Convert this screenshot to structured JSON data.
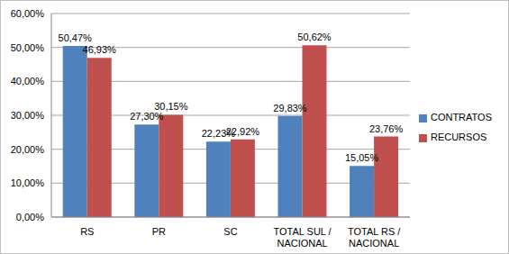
{
  "chart_data": {
    "type": "bar",
    "categories": [
      "RS",
      "PR",
      "SC",
      "TOTAL SUL / NACIONAL",
      "TOTAL RS / NACIONAL"
    ],
    "series": [
      {
        "name": "CONTRATOS",
        "color": "#4f81bd",
        "values": [
          50.47,
          27.3,
          22.23,
          29.83,
          15.05
        ],
        "value_labels": [
          "50,47%",
          "27,30%",
          "22,23%",
          "29,83%",
          "15,05%"
        ]
      },
      {
        "name": "RECURSOS",
        "color": "#c0504d",
        "values": [
          46.93,
          30.15,
          22.92,
          50.62,
          23.76
        ],
        "value_labels": [
          "46,93%",
          "30,15%",
          "22,92%",
          "50,62%",
          "23,76%"
        ]
      }
    ],
    "ylim": [
      0,
      60
    ],
    "yticks": [
      {
        "value": 0,
        "label": "0,00%"
      },
      {
        "value": 10,
        "label": "10,00%"
      },
      {
        "value": 20,
        "label": "20,00%"
      },
      {
        "value": 30,
        "label": "30,00%"
      },
      {
        "value": 40,
        "label": "40,00%"
      },
      {
        "value": 50,
        "label": "50,00%"
      },
      {
        "value": 60,
        "label": "60,00%"
      }
    ],
    "grid": true,
    "legend": "right",
    "data_labels": true
  }
}
